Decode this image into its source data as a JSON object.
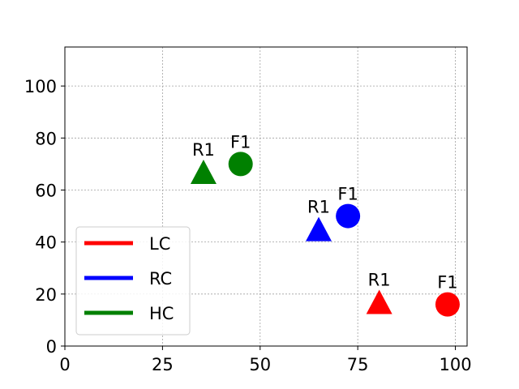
{
  "chart_data": {
    "type": "scatter",
    "title": "",
    "xlabel": "",
    "ylabel": "",
    "xlim": [
      0,
      103
    ],
    "ylim": [
      0,
      115
    ],
    "x_ticks": [
      0,
      25,
      50,
      75,
      100
    ],
    "y_ticks": [
      0,
      20,
      40,
      60,
      80,
      100
    ],
    "grid": true,
    "legend_position": "lower-left",
    "series": [
      {
        "name": "LC",
        "color": "#ff0000",
        "points": [
          {
            "label": "R1",
            "marker": "triangle",
            "x": 80.5,
            "y": 17
          },
          {
            "label": "F1",
            "marker": "circle",
            "x": 98,
            "y": 16
          }
        ]
      },
      {
        "name": "RC",
        "color": "#0000ff",
        "points": [
          {
            "label": "R1",
            "marker": "triangle",
            "x": 65,
            "y": 45
          },
          {
            "label": "F1",
            "marker": "circle",
            "x": 72.5,
            "y": 50
          }
        ]
      },
      {
        "name": "HC",
        "color": "#008000",
        "points": [
          {
            "label": "R1",
            "marker": "triangle",
            "x": 35.5,
            "y": 67
          },
          {
            "label": "F1",
            "marker": "circle",
            "x": 45,
            "y": 70
          }
        ]
      }
    ]
  }
}
